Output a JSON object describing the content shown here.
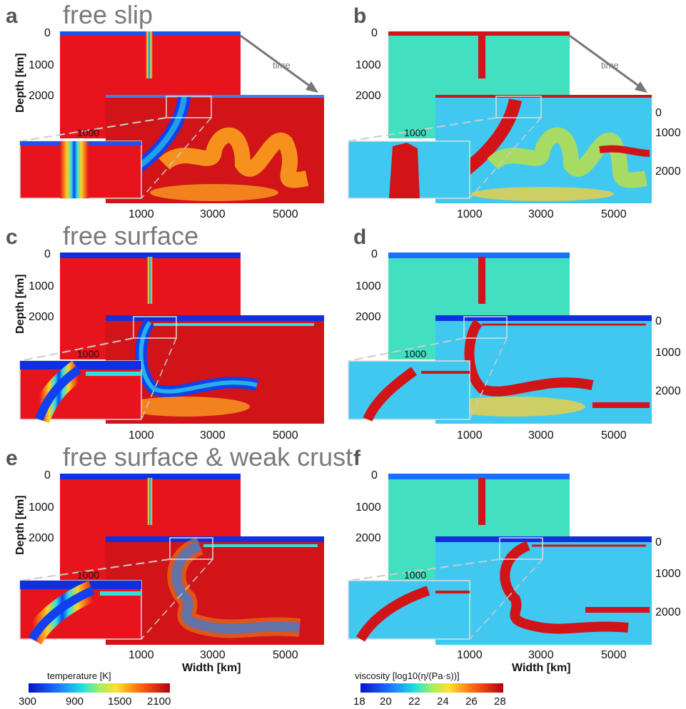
{
  "panel_letters": [
    "a",
    "b",
    "c",
    "d",
    "e",
    "f"
  ],
  "titles": {
    "a": "free slip",
    "c": "free surface",
    "e": "free surface & weak crust"
  },
  "time_label": "time",
  "depth_label": "Depth [km]",
  "width_label": "Width [km]",
  "depth_ticks": [
    "0",
    "1000",
    "2000"
  ],
  "zoom_depth_tick": "1000",
  "width_ticks": [
    "1000",
    "3000",
    "5000"
  ],
  "right_depth_ticks": [
    "0",
    "1000",
    "2000"
  ],
  "temperature_colorbar": {
    "label": "temperature [K]",
    "ticks": [
      "300",
      "900",
      "1500",
      "2100"
    ]
  },
  "viscosity_colorbar": {
    "label": "viscosity [log10(η/(Pa·s))]",
    "ticks": [
      "18",
      "20",
      "22",
      "24",
      "26",
      "28"
    ]
  },
  "colors": {
    "hot": "#e8141c",
    "cold": "#0a2fe0",
    "viscosity_bg": "#3fe0c0",
    "viscosity_mid": "#40c8f0",
    "text_gray": "#7a7a7a"
  }
}
